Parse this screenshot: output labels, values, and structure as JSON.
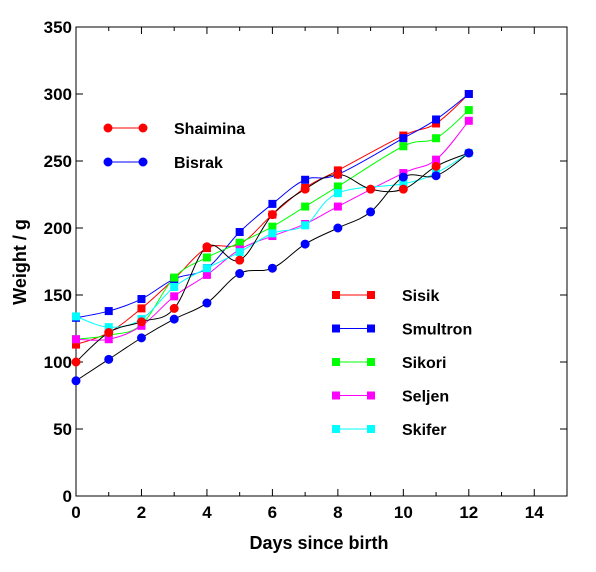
{
  "chart_data": {
    "type": "line",
    "title": "",
    "xlabel": "Days since birth",
    "ylabel": "Weight / g",
    "xlim": [
      0,
      15
    ],
    "ylim": [
      0,
      350
    ],
    "x_ticks": [
      0,
      2,
      4,
      6,
      8,
      10,
      12,
      14
    ],
    "y_ticks": [
      0,
      50,
      100,
      150,
      200,
      250,
      300,
      350
    ],
    "grid": false,
    "series": [
      {
        "name": "Shaimina",
        "color": "#ff0000",
        "line_color": "#000000",
        "marker": "circle",
        "legend_group": "top-left",
        "x": [
          0,
          1,
          2,
          3,
          4,
          5,
          6,
          7,
          8,
          9,
          10,
          11,
          12
        ],
        "y": [
          100,
          122,
          130,
          140,
          186,
          176,
          210,
          229,
          240,
          229,
          229,
          246,
          256
        ]
      },
      {
        "name": "Bisrak",
        "color": "#0000ff",
        "line_color": "#000000",
        "marker": "circle",
        "legend_group": "top-left",
        "x": [
          0,
          1,
          2,
          3,
          4,
          5,
          6,
          7,
          8,
          9,
          10,
          11,
          12
        ],
        "y": [
          86,
          102,
          118,
          132,
          144,
          166,
          170,
          188,
          200,
          212,
          238,
          239,
          256
        ]
      },
      {
        "name": "Sisik",
        "color": "#ff0000",
        "line_color": "#ff0000",
        "marker": "square",
        "legend_group": "right",
        "x": [
          0,
          1,
          2,
          3,
          4,
          5,
          6,
          7,
          8,
          10,
          11,
          12
        ],
        "y": [
          113,
          122,
          140,
          162,
          185,
          188,
          210,
          230,
          243,
          269,
          278,
          300
        ]
      },
      {
        "name": "Smultron",
        "color": "#0000ff",
        "line_color": "#0000ff",
        "marker": "square",
        "legend_group": "right",
        "x": [
          0,
          1,
          2,
          3,
          4,
          5,
          6,
          7,
          8,
          10,
          11,
          12
        ],
        "y": [
          133,
          138,
          147,
          162,
          170,
          197,
          218,
          236,
          240,
          267,
          281,
          300
        ]
      },
      {
        "name": "Sikori",
        "color": "#00ff00",
        "line_color": "#00ff00",
        "marker": "square",
        "legend_group": "right",
        "x": [
          0,
          1,
          2,
          3,
          4,
          5,
          6,
          7,
          8,
          10,
          11,
          12
        ],
        "y": [
          117,
          120,
          128,
          163,
          178,
          189,
          201,
          216,
          231,
          261,
          267,
          288
        ]
      },
      {
        "name": "Seljen",
        "color": "#ff00ff",
        "line_color": "#ff00ff",
        "marker": "square",
        "legend_group": "right",
        "x": [
          0,
          1,
          2,
          3,
          4,
          5,
          6,
          7,
          8,
          10,
          11,
          12
        ],
        "y": [
          117,
          117,
          127,
          149,
          165,
          184,
          194,
          203,
          216,
          241,
          251,
          280
        ]
      },
      {
        "name": "Skifer",
        "color": "#00ffff",
        "line_color": "#00ffff",
        "marker": "square",
        "legend_group": "right",
        "x": [
          0,
          1,
          2,
          3,
          4,
          5,
          6,
          7,
          8,
          10,
          11,
          12
        ],
        "y": [
          134,
          126,
          132,
          156,
          170,
          182,
          196,
          202,
          226,
          233,
          241,
          256
        ]
      }
    ],
    "legends": [
      {
        "position": "top-left",
        "entries": [
          "Shaimina",
          "Bisrak"
        ]
      },
      {
        "position": "right",
        "entries": [
          "Sisik",
          "Smultron",
          "Sikori",
          "Seljen",
          "Skifer"
        ]
      }
    ]
  }
}
